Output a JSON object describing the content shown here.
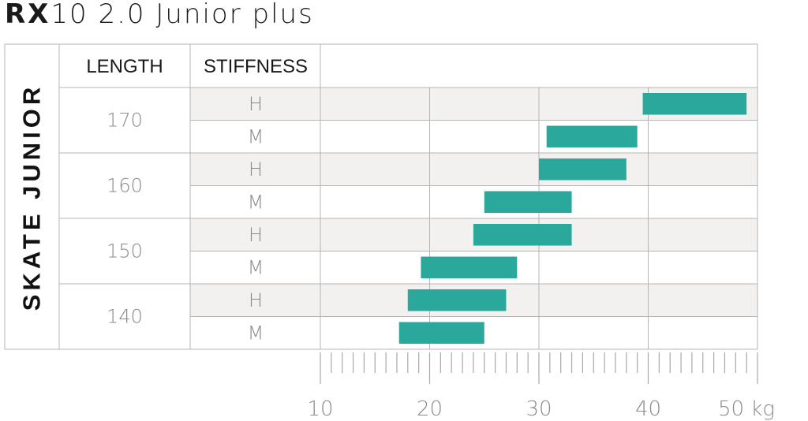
{
  "title": {
    "brand": "RX",
    "model": "10 2.0 Junior plus"
  },
  "table": {
    "category": "SKATE JUNIOR",
    "col_length": "LENGTH",
    "col_stiffness": "STIFFNESS"
  },
  "chart_data": {
    "type": "bar",
    "orientation": "horizontal-range",
    "title": "RX10 2.0 Junior plus",
    "xlabel": "kg",
    "xlim": [
      10,
      50
    ],
    "xticks": [
      "10",
      "20",
      "30",
      "40",
      "50 kg"
    ],
    "grid": true,
    "bar_color": "#2ba89c",
    "groups": [
      {
        "length": "170",
        "rows": [
          {
            "stiffness": "H",
            "min": 39.5,
            "max": 49
          },
          {
            "stiffness": "M",
            "min": 30.7,
            "max": 39
          }
        ]
      },
      {
        "length": "160",
        "rows": [
          {
            "stiffness": "H",
            "min": 30,
            "max": 38
          },
          {
            "stiffness": "M",
            "min": 25,
            "max": 33
          }
        ]
      },
      {
        "length": "150",
        "rows": [
          {
            "stiffness": "H",
            "min": 24,
            "max": 33
          },
          {
            "stiffness": "M",
            "min": 19.2,
            "max": 28
          }
        ]
      },
      {
        "length": "140",
        "rows": [
          {
            "stiffness": "H",
            "min": 18,
            "max": 27
          },
          {
            "stiffness": "M",
            "min": 17.2,
            "max": 25
          }
        ]
      }
    ]
  }
}
